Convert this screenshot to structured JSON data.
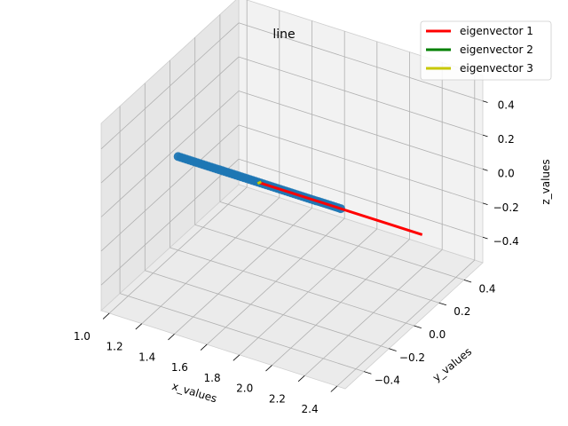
{
  "chart_data": {
    "type": "scatter",
    "projection": "3d",
    "title": "line",
    "xlabel": "x_values",
    "ylabel": "y_values",
    "zlabel": "z_values",
    "xlim": [
      0.95,
      2.45
    ],
    "ylim": [
      -0.55,
      0.55
    ],
    "zlim": [
      -0.55,
      0.55
    ],
    "xticks": [
      "1.0",
      "1.2",
      "1.4",
      "1.6",
      "1.8",
      "2.0",
      "2.2",
      "2.4"
    ],
    "yticks": [
      "−0.4",
      "−0.2",
      "0.0",
      "0.2",
      "0.4"
    ],
    "zticks": [
      "−0.4",
      "−0.2",
      "0.0",
      "0.2",
      "0.4"
    ],
    "grid": true,
    "legend_position": "top-right",
    "points": {
      "color": "#1f77b4",
      "x_range": [
        1.0,
        2.0
      ],
      "y": 0.0,
      "z": 0.0,
      "count": 60
    },
    "series": [
      {
        "name": "eigenvector 1",
        "color": "#ff0000",
        "start": [
          1.5,
          0.0,
          0.0
        ],
        "end": [
          2.5,
          0.0,
          0.0
        ]
      },
      {
        "name": "eigenvector 2",
        "color": "#008000",
        "start": [
          1.5,
          0.0,
          0.0
        ],
        "end": [
          1.5,
          0.0,
          0.0
        ]
      },
      {
        "name": "eigenvector 3",
        "color": "#c8c800",
        "start": [
          1.5,
          0.0,
          0.0
        ],
        "end": [
          1.5,
          0.0,
          0.0
        ]
      }
    ]
  }
}
